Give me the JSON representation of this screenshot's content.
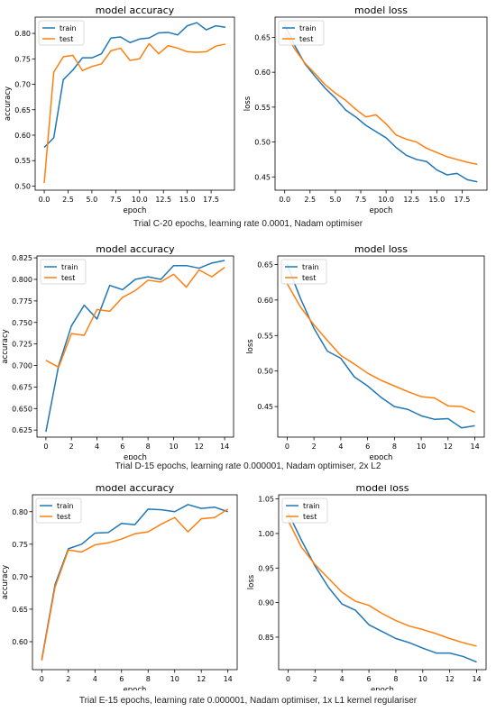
{
  "colors": {
    "train": "#1f77b4",
    "test": "#ff7f0e",
    "axis": "#000000",
    "text": "#222222",
    "background": "#ffffff"
  },
  "trials": [
    {
      "caption": "Trial C-20 epochs, learning rate 0.0001, Nadam optimiser",
      "charts": [
        {
          "type": "line",
          "title": "model accuracy",
          "xlabel": "epoch",
          "ylabel": "accuracy",
          "xlim": [
            -0.95,
            19.95
          ],
          "ylim": [
            0.492,
            0.832
          ],
          "xticks": [
            0.0,
            2.5,
            5.0,
            7.5,
            10.0,
            12.5,
            15.0,
            17.5
          ],
          "xtick_labels": [
            "0.0",
            "2.5",
            "5.0",
            "7.5",
            "10.0",
            "12.5",
            "15.0",
            "17.5"
          ],
          "yticks": [
            0.5,
            0.55,
            0.6,
            0.65,
            0.7,
            0.75,
            0.8
          ],
          "ytick_labels": [
            "0.50",
            "0.55",
            "0.60",
            "0.65",
            "0.70",
            "0.75",
            "0.80"
          ],
          "grid": false,
          "legend": "upper left",
          "x": [
            0,
            1,
            2,
            3,
            4,
            5,
            6,
            7,
            8,
            9,
            10,
            11,
            12,
            13,
            14,
            15,
            16,
            17,
            18,
            19
          ],
          "series": [
            {
              "name": "train",
              "values": [
                0.576,
                0.595,
                0.709,
                0.728,
                0.752,
                0.752,
                0.76,
                0.791,
                0.793,
                0.782,
                0.789,
                0.791,
                0.801,
                0.802,
                0.797,
                0.815,
                0.821,
                0.807,
                0.815,
                0.812
              ]
            },
            {
              "name": "test",
              "values": [
                0.506,
                0.724,
                0.754,
                0.757,
                0.727,
                0.735,
                0.74,
                0.766,
                0.771,
                0.747,
                0.75,
                0.78,
                0.76,
                0.776,
                0.771,
                0.764,
                0.763,
                0.764,
                0.775,
                0.779
              ]
            }
          ]
        },
        {
          "type": "line",
          "title": "model loss",
          "xlabel": "epoch",
          "ylabel": "loss",
          "xlim": [
            -0.95,
            19.95
          ],
          "ylim": [
            0.431,
            0.679
          ],
          "xticks": [
            0.0,
            2.5,
            5.0,
            7.5,
            10.0,
            12.5,
            15.0,
            17.5
          ],
          "xtick_labels": [
            "0.0",
            "2.5",
            "5.0",
            "7.5",
            "10.0",
            "12.5",
            "15.0",
            "17.5"
          ],
          "yticks": [
            0.45,
            0.5,
            0.55,
            0.6,
            0.65
          ],
          "ytick_labels": [
            "0.45",
            "0.50",
            "0.55",
            "0.60",
            "0.65"
          ],
          "grid": false,
          "legend": "upper left",
          "x": [
            0,
            1,
            2,
            3,
            4,
            5,
            6,
            7,
            8,
            9,
            10,
            11,
            12,
            13,
            14,
            15,
            16,
            17,
            18,
            19
          ],
          "series": [
            {
              "name": "train",
              "values": [
                0.668,
                0.638,
                0.612,
                0.594,
                0.577,
                0.563,
                0.546,
                0.536,
                0.524,
                0.515,
                0.506,
                0.492,
                0.481,
                0.475,
                0.472,
                0.46,
                0.453,
                0.455,
                0.446,
                0.443
              ]
            },
            {
              "name": "test",
              "values": [
                0.657,
                0.633,
                0.613,
                0.598,
                0.582,
                0.57,
                0.56,
                0.547,
                0.536,
                0.539,
                0.526,
                0.51,
                0.504,
                0.5,
                0.491,
                0.485,
                0.479,
                0.475,
                0.471,
                0.468
              ]
            }
          ]
        }
      ]
    },
    {
      "caption": "Trial D-15 epochs, learning rate 0.000001, Nadam optimiser, 2x L2",
      "charts": [
        {
          "type": "line",
          "title": "model accuracy",
          "xlabel": "epoch",
          "ylabel": "accuracy",
          "xlim": [
            -0.7,
            14.7
          ],
          "ylim": [
            0.6168,
            0.8272
          ],
          "xticks": [
            0,
            2,
            4,
            6,
            8,
            10,
            12,
            14
          ],
          "xtick_labels": [
            "0",
            "2",
            "4",
            "6",
            "8",
            "10",
            "12",
            "14"
          ],
          "yticks": [
            0.625,
            0.65,
            0.675,
            0.7,
            0.725,
            0.75,
            0.775,
            0.8,
            0.825
          ],
          "ytick_labels": [
            "0.625",
            "0.650",
            "0.675",
            "0.700",
            "0.725",
            "0.750",
            "0.775",
            "0.800",
            "0.825"
          ],
          "grid": false,
          "legend": "upper left",
          "x": [
            0,
            1,
            2,
            3,
            4,
            5,
            6,
            7,
            8,
            9,
            10,
            11,
            12,
            13,
            14
          ],
          "series": [
            {
              "name": "train",
              "values": [
                0.623,
                0.7,
                0.746,
                0.77,
                0.754,
                0.793,
                0.788,
                0.8,
                0.803,
                0.8,
                0.816,
                0.816,
                0.813,
                0.819,
                0.822
              ]
            },
            {
              "name": "test",
              "values": [
                0.706,
                0.698,
                0.737,
                0.735,
                0.765,
                0.763,
                0.779,
                0.787,
                0.799,
                0.797,
                0.806,
                0.791,
                0.811,
                0.803,
                0.814
              ]
            }
          ]
        },
        {
          "type": "line",
          "title": "model loss",
          "xlabel": "epoch",
          "ylabel": "loss",
          "xlim": [
            -0.7,
            14.7
          ],
          "ylim": [
            0.407,
            0.662
          ],
          "xticks": [
            0,
            2,
            4,
            6,
            8,
            10,
            12,
            14
          ],
          "xtick_labels": [
            "0",
            "2",
            "4",
            "6",
            "8",
            "10",
            "12",
            "14"
          ],
          "yticks": [
            0.45,
            0.5,
            0.55,
            0.6,
            0.65
          ],
          "ytick_labels": [
            "0.45",
            "0.50",
            "0.55",
            "0.60",
            "0.65"
          ],
          "grid": false,
          "legend": "upper left",
          "x": [
            0,
            1,
            2,
            3,
            4,
            5,
            6,
            7,
            8,
            9,
            10,
            11,
            12,
            13,
            14
          ],
          "series": [
            {
              "name": "train",
              "values": [
                0.65,
                0.602,
                0.56,
                0.528,
                0.518,
                0.492,
                0.479,
                0.463,
                0.45,
                0.446,
                0.437,
                0.432,
                0.433,
                0.42,
                0.423
              ]
            },
            {
              "name": "test",
              "values": [
                0.623,
                0.59,
                0.565,
                0.543,
                0.522,
                0.51,
                0.497,
                0.487,
                0.479,
                0.471,
                0.464,
                0.462,
                0.451,
                0.45,
                0.442
              ]
            }
          ]
        }
      ]
    },
    {
      "caption": "Trial E-15 epochs, learning rate 0.000001, Nadam optimiser, 1x L1 kernel regulariser",
      "charts": [
        {
          "type": "line",
          "title": "model accuracy",
          "xlabel": "epoch",
          "ylabel": "accuracy",
          "xlim": [
            -0.7,
            14.7
          ],
          "ylim": [
            0.557,
            0.826
          ],
          "xticks": [
            0,
            2,
            4,
            6,
            8,
            10,
            12,
            14
          ],
          "xtick_labels": [
            "0",
            "2",
            "4",
            "6",
            "8",
            "10",
            "12",
            "14"
          ],
          "yticks": [
            0.6,
            0.65,
            0.7,
            0.75,
            0.8
          ],
          "ytick_labels": [
            "0.60",
            "0.65",
            "0.70",
            "0.75",
            "0.80"
          ],
          "grid": false,
          "legend": "upper left",
          "x": [
            0,
            1,
            2,
            3,
            4,
            5,
            6,
            7,
            8,
            9,
            10,
            11,
            12,
            13,
            14
          ],
          "series": [
            {
              "name": "train",
              "values": [
                0.573,
                0.688,
                0.743,
                0.75,
                0.767,
                0.768,
                0.782,
                0.78,
                0.804,
                0.803,
                0.8,
                0.811,
                0.805,
                0.807,
                0.8
              ]
            },
            {
              "name": "test",
              "values": [
                0.571,
                0.684,
                0.741,
                0.738,
                0.749,
                0.752,
                0.758,
                0.766,
                0.769,
                0.781,
                0.791,
                0.769,
                0.789,
                0.791,
                0.804
              ]
            }
          ]
        },
        {
          "type": "line",
          "title": "model loss",
          "xlabel": "epoch",
          "ylabel": "loss",
          "xlim": [
            -0.7,
            14.7
          ],
          "ylim": [
            0.803,
            1.056
          ],
          "xticks": [
            0,
            2,
            4,
            6,
            8,
            10,
            12,
            14
          ],
          "xtick_labels": [
            "0",
            "2",
            "4",
            "6",
            "8",
            "10",
            "12",
            "14"
          ],
          "yticks": [
            0.85,
            0.9,
            0.95,
            1.0,
            1.05
          ],
          "ytick_labels": [
            "0.85",
            "0.90",
            "0.95",
            "1.00",
            "1.05"
          ],
          "grid": false,
          "legend": "upper left",
          "x": [
            0,
            1,
            2,
            3,
            4,
            5,
            6,
            7,
            8,
            9,
            10,
            11,
            12,
            13,
            14
          ],
          "series": [
            {
              "name": "train",
              "values": [
                1.03,
                0.99,
                0.953,
                0.922,
                0.898,
                0.889,
                0.868,
                0.858,
                0.848,
                0.842,
                0.834,
                0.827,
                0.827,
                0.822,
                0.814
              ]
            },
            {
              "name": "test",
              "values": [
                1.019,
                0.98,
                0.955,
                0.935,
                0.915,
                0.902,
                0.896,
                0.884,
                0.874,
                0.866,
                0.861,
                0.855,
                0.848,
                0.842,
                0.837
              ]
            }
          ]
        }
      ]
    }
  ]
}
